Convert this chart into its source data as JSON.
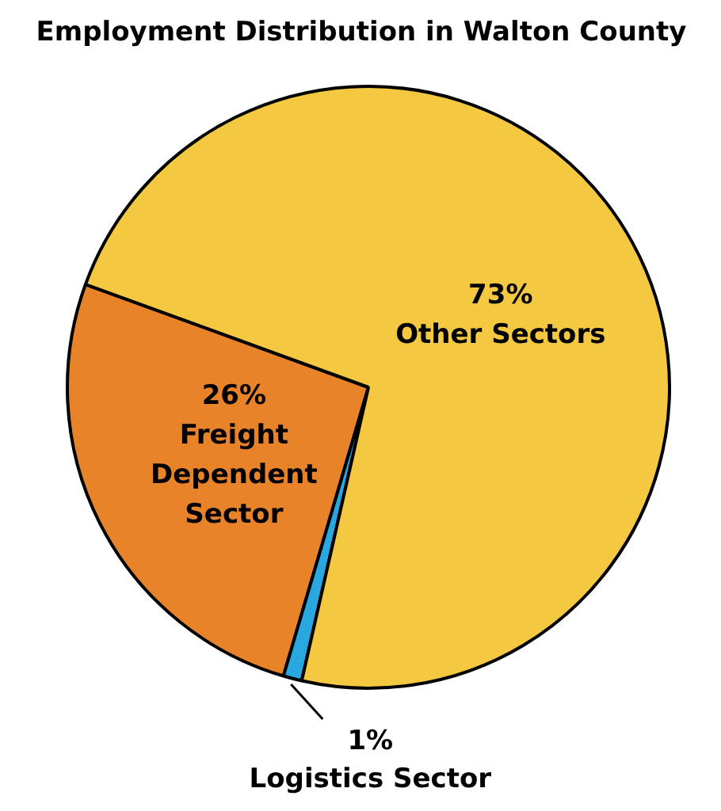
{
  "chart_data": {
    "type": "pie",
    "title": "Employment Distribution in Walton County",
    "categories": [
      "Freight Dependent Sector",
      "Logistics Sector",
      "Other Sectors"
    ],
    "values": [
      26,
      1,
      73
    ],
    "colors": [
      "#e8832a",
      "#29a8e0",
      "#f5c842"
    ],
    "value_labels": [
      "26%",
      "1%",
      "73%"
    ]
  }
}
